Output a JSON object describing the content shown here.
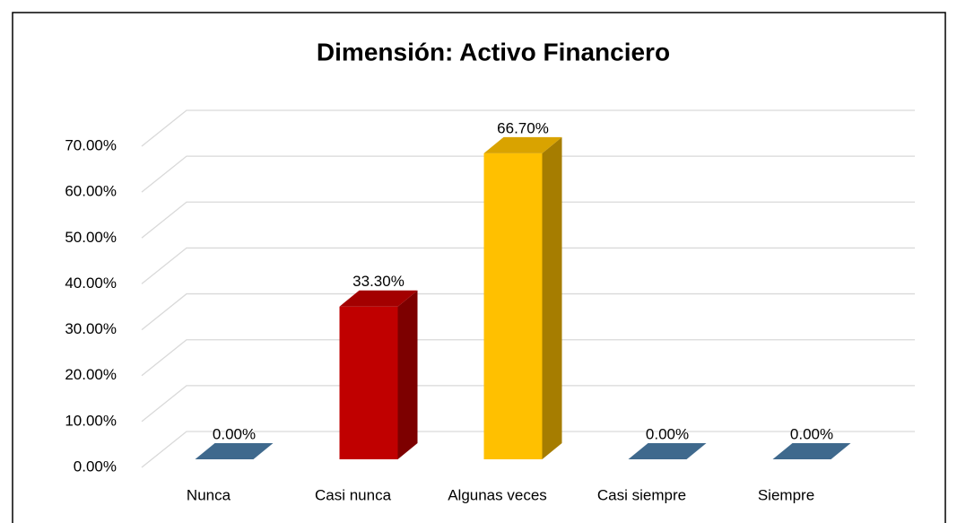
{
  "chart_data": {
    "type": "bar3d",
    "title": "Dimensión: Activo Financiero",
    "categories": [
      "Nunca",
      "Casi nunca",
      "Algunas veces",
      "Casi siempre",
      "Siempre"
    ],
    "values": [
      0,
      33.3,
      66.7,
      0,
      0
    ],
    "value_labels": [
      "0.00%",
      "33.30%",
      "66.70%",
      "0.00%",
      "0.00%"
    ],
    "colors": [
      "#4a7ba6",
      "#c00000",
      "#ffc000",
      "#4a7ba6",
      "#4a7ba6"
    ],
    "ylim": [
      0,
      70
    ],
    "yticks": [
      {
        "value": 0,
        "label": "0.00%"
      },
      {
        "value": 10,
        "label": "10.00%"
      },
      {
        "value": 20,
        "label": "20.00%"
      },
      {
        "value": 30,
        "label": "30.00%"
      },
      {
        "value": 40,
        "label": "40.00%"
      },
      {
        "value": 50,
        "label": "50.00%"
      },
      {
        "value": 60,
        "label": "60.00%"
      },
      {
        "value": 70,
        "label": "70.00%"
      }
    ],
    "grid": true
  }
}
